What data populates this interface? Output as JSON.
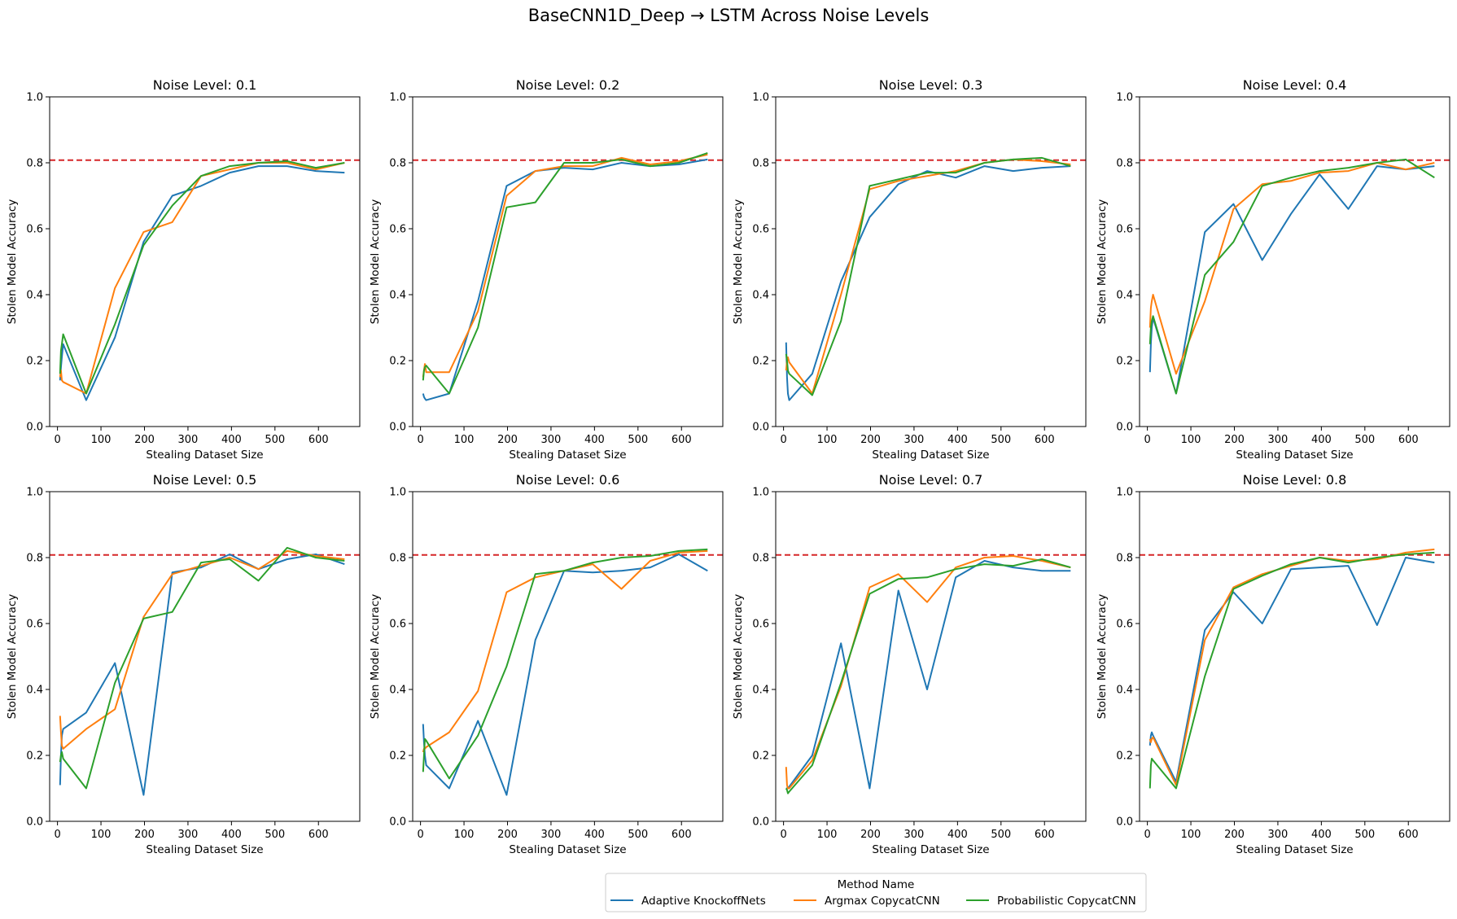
{
  "chart_data": {
    "type": "line",
    "title": "BaseCNN1D_Deep → LSTM Across Noise Levels",
    "xlabel": "Stealing Dataset Size",
    "ylabel": "Stolen Model Accuracy",
    "xlim": [
      -18,
      695
    ],
    "ylim": [
      0,
      1
    ],
    "xticks": [
      0,
      100,
      200,
      300,
      400,
      500,
      600
    ],
    "yticks": [
      0.0,
      0.2,
      0.4,
      0.6,
      0.8,
      1.0
    ],
    "ytick_labels": [
      "0.0",
      "0.2",
      "0.4",
      "0.6",
      "0.8",
      "1.0"
    ],
    "grid": false,
    "reference_line": {
      "y": 0.808,
      "color": "#d62728",
      "style": "dashed"
    },
    "colors": {
      "Adaptive KnockoffNets": "#1f77b4",
      "Argmax CopycatCNN": "#ff7f0e",
      "Probabilistic CopycatCNN": "#2ca02c"
    },
    "legend": {
      "title": "Method Name",
      "placement": "bottom-center",
      "entries": [
        "Adaptive KnockoffNets",
        "Argmax CopycatCNN",
        "Probabilistic CopycatCNN"
      ]
    },
    "x": [
      6,
      8,
      10,
      13,
      66,
      132,
      198,
      264,
      330,
      396,
      462,
      528,
      594,
      660
    ],
    "panels": [
      {
        "title": "Noise Level: 0.1",
        "series": [
          {
            "name": "Adaptive KnockoffNets",
            "values": [
              0.14,
              0.18,
              0.21,
              0.25,
              0.08,
              0.27,
              0.56,
              0.7,
              0.73,
              0.77,
              0.79,
              0.79,
              0.775,
              0.77
            ]
          },
          {
            "name": "Argmax CopycatCNN",
            "values": [
              0.15,
              0.17,
              0.14,
              0.135,
              0.1,
              0.42,
              0.59,
              0.62,
              0.76,
              0.78,
              0.8,
              0.8,
              0.78,
              0.8
            ]
          },
          {
            "name": "Probabilistic CopycatCNN",
            "values": [
              0.16,
              0.23,
              0.25,
              0.28,
              0.1,
              0.31,
              0.55,
              0.67,
              0.76,
              0.79,
              0.8,
              0.805,
              0.785,
              0.8
            ]
          }
        ]
      },
      {
        "title": "Noise Level: 0.2",
        "series": [
          {
            "name": "Adaptive KnockoffNets",
            "values": [
              0.1,
              0.09,
              0.085,
              0.08,
              0.1,
              0.38,
              0.73,
              0.775,
              0.785,
              0.78,
              0.8,
              0.79,
              0.795,
              0.81
            ]
          },
          {
            "name": "Argmax CopycatCNN",
            "values": [
              0.15,
              0.17,
              0.19,
              0.165,
              0.165,
              0.35,
              0.7,
              0.775,
              0.79,
              0.79,
              0.815,
              0.795,
              0.805,
              0.825
            ]
          },
          {
            "name": "Probabilistic CopycatCNN",
            "values": [
              0.14,
              0.17,
              0.18,
              0.185,
              0.1,
              0.3,
              0.665,
              0.68,
              0.8,
              0.8,
              0.81,
              0.79,
              0.8,
              0.83
            ]
          }
        ]
      },
      {
        "title": "Noise Level: 0.3",
        "series": [
          {
            "name": "Adaptive KnockoffNets",
            "values": [
              0.255,
              0.15,
              0.1,
              0.08,
              0.16,
              0.44,
              0.635,
              0.735,
              0.775,
              0.755,
              0.79,
              0.775,
              0.785,
              0.79
            ]
          },
          {
            "name": "Argmax CopycatCNN",
            "values": [
              0.17,
              0.2,
              0.21,
              0.195,
              0.1,
              0.4,
              0.72,
              0.745,
              0.76,
              0.775,
              0.8,
              0.81,
              0.805,
              0.795
            ]
          },
          {
            "name": "Probabilistic CopycatCNN",
            "values": [
              0.22,
              0.2,
              0.17,
              0.16,
              0.095,
              0.32,
              0.73,
              0.75,
              0.77,
              0.77,
              0.8,
              0.81,
              0.815,
              0.79
            ]
          }
        ]
      },
      {
        "title": "Noise Level: 0.4",
        "series": [
          {
            "name": "Adaptive KnockoffNets",
            "values": [
              0.165,
              0.25,
              0.3,
              0.33,
              0.1,
              0.59,
              0.675,
              0.505,
              0.645,
              0.765,
              0.66,
              0.79,
              0.78,
              0.79
            ]
          },
          {
            "name": "Argmax CopycatCNN",
            "values": [
              0.3,
              0.36,
              0.38,
              0.4,
              0.16,
              0.38,
              0.66,
              0.735,
              0.745,
              0.77,
              0.775,
              0.8,
              0.78,
              0.8
            ]
          },
          {
            "name": "Probabilistic CopycatCNN",
            "values": [
              0.25,
              0.3,
              0.32,
              0.335,
              0.1,
              0.46,
              0.56,
              0.73,
              0.755,
              0.775,
              0.785,
              0.8,
              0.81,
              0.755
            ]
          }
        ]
      },
      {
        "title": "Noise Level: 0.5",
        "series": [
          {
            "name": "Adaptive KnockoffNets",
            "values": [
              0.11,
              0.2,
              0.26,
              0.28,
              0.33,
              0.48,
              0.08,
              0.755,
              0.77,
              0.81,
              0.765,
              0.795,
              0.81,
              0.78
            ]
          },
          {
            "name": "Argmax CopycatCNN",
            "values": [
              0.32,
              0.27,
              0.23,
              0.22,
              0.28,
              0.34,
              0.62,
              0.75,
              0.775,
              0.8,
              0.765,
              0.82,
              0.805,
              0.795
            ]
          },
          {
            "name": "Probabilistic CopycatCNN",
            "values": [
              0.18,
              0.2,
              0.21,
              0.19,
              0.1,
              0.42,
              0.615,
              0.635,
              0.785,
              0.795,
              0.73,
              0.83,
              0.8,
              0.79
            ]
          }
        ]
      },
      {
        "title": "Noise Level: 0.6",
        "series": [
          {
            "name": "Adaptive KnockoffNets",
            "values": [
              0.295,
              0.24,
              0.2,
              0.17,
              0.1,
              0.305,
              0.08,
              0.55,
              0.76,
              0.755,
              0.76,
              0.77,
              0.81,
              0.76
            ]
          },
          {
            "name": "Argmax CopycatCNN",
            "values": [
              0.21,
              0.22,
              0.22,
              0.225,
              0.27,
              0.395,
              0.695,
              0.74,
              0.76,
              0.78,
              0.705,
              0.79,
              0.815,
              0.82
            ]
          },
          {
            "name": "Probabilistic CopycatCNN",
            "values": [
              0.15,
              0.2,
              0.25,
              0.245,
              0.13,
              0.26,
              0.47,
              0.75,
              0.76,
              0.785,
              0.8,
              0.805,
              0.82,
              0.825
            ]
          }
        ]
      },
      {
        "title": "Noise Level: 0.7",
        "series": [
          {
            "name": "Adaptive KnockoffNets",
            "values": [
              0.1,
              0.1,
              0.1,
              0.105,
              0.2,
              0.54,
              0.1,
              0.7,
              0.4,
              0.74,
              0.79,
              0.77,
              0.76,
              0.76
            ]
          },
          {
            "name": "Argmax CopycatCNN",
            "values": [
              0.165,
              0.11,
              0.1,
              0.1,
              0.185,
              0.41,
              0.71,
              0.75,
              0.665,
              0.77,
              0.8,
              0.805,
              0.79,
              0.77
            ]
          },
          {
            "name": "Probabilistic CopycatCNN",
            "values": [
              0.1,
              0.095,
              0.085,
              0.09,
              0.17,
              0.42,
              0.69,
              0.735,
              0.74,
              0.765,
              0.78,
              0.775,
              0.795,
              0.77
            ]
          }
        ]
      },
      {
        "title": "Noise Level: 0.8",
        "series": [
          {
            "name": "Adaptive KnockoffNets",
            "values": [
              0.23,
              0.26,
              0.27,
              0.26,
              0.12,
              0.58,
              0.695,
              0.6,
              0.765,
              0.77,
              0.775,
              0.595,
              0.8,
              0.785
            ]
          },
          {
            "name": "Argmax CopycatCNN",
            "values": [
              0.25,
              0.24,
              0.25,
              0.255,
              0.11,
              0.55,
              0.71,
              0.75,
              0.775,
              0.8,
              0.79,
              0.795,
              0.815,
              0.825
            ]
          },
          {
            "name": "Probabilistic CopycatCNN",
            "values": [
              0.1,
              0.17,
              0.19,
              0.185,
              0.1,
              0.44,
              0.705,
              0.745,
              0.78,
              0.8,
              0.785,
              0.8,
              0.81,
              0.815
            ]
          }
        ]
      }
    ]
  }
}
